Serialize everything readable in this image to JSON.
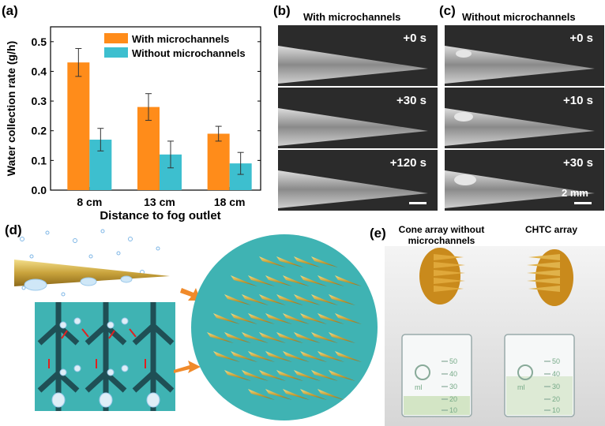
{
  "panels": {
    "a": "(a)",
    "b": "(b)",
    "c": "(c)",
    "d": "(d)",
    "e": "(e)"
  },
  "chart_data": {
    "type": "bar",
    "title": "",
    "xlabel": "Distance to fog outlet",
    "ylabel": "Water collection rate (g/h)",
    "categories": [
      "8 cm",
      "13 cm",
      "18 cm"
    ],
    "ylim": [
      0.0,
      0.55
    ],
    "yticks": [
      "0.0",
      "0.1",
      "0.2",
      "0.3",
      "0.4",
      "0.5"
    ],
    "series": [
      {
        "name": "With microchannels",
        "color": "#ff8c1a",
        "values": [
          0.43,
          0.28,
          0.19
        ],
        "errors": [
          0.047,
          0.045,
          0.025
        ]
      },
      {
        "name": "Without microchannels",
        "color": "#3dbfcf",
        "values": [
          0.17,
          0.12,
          0.09
        ],
        "errors": [
          0.038,
          0.045,
          0.037
        ]
      }
    ],
    "legend_position": "top-right"
  },
  "panel_b": {
    "title": "With  microchannels",
    "times": [
      "+0 s",
      "+30 s",
      "+120 s"
    ]
  },
  "panel_c": {
    "title": "Without  microchannels",
    "times": [
      "+0 s",
      "+10 s",
      "+30 s"
    ],
    "scale_bar": "2 mm"
  },
  "panel_e": {
    "left_label": "Cone array without microchannels",
    "right_label": "CHTC array",
    "beaker_marks_left": [
      "50",
      "40",
      "30",
      "20",
      "10"
    ],
    "beaker_marks_right": [
      "50",
      "40",
      "30",
      "20",
      "10"
    ],
    "beaker_volume_left": "ml",
    "beaker_volume_right": "ml"
  }
}
